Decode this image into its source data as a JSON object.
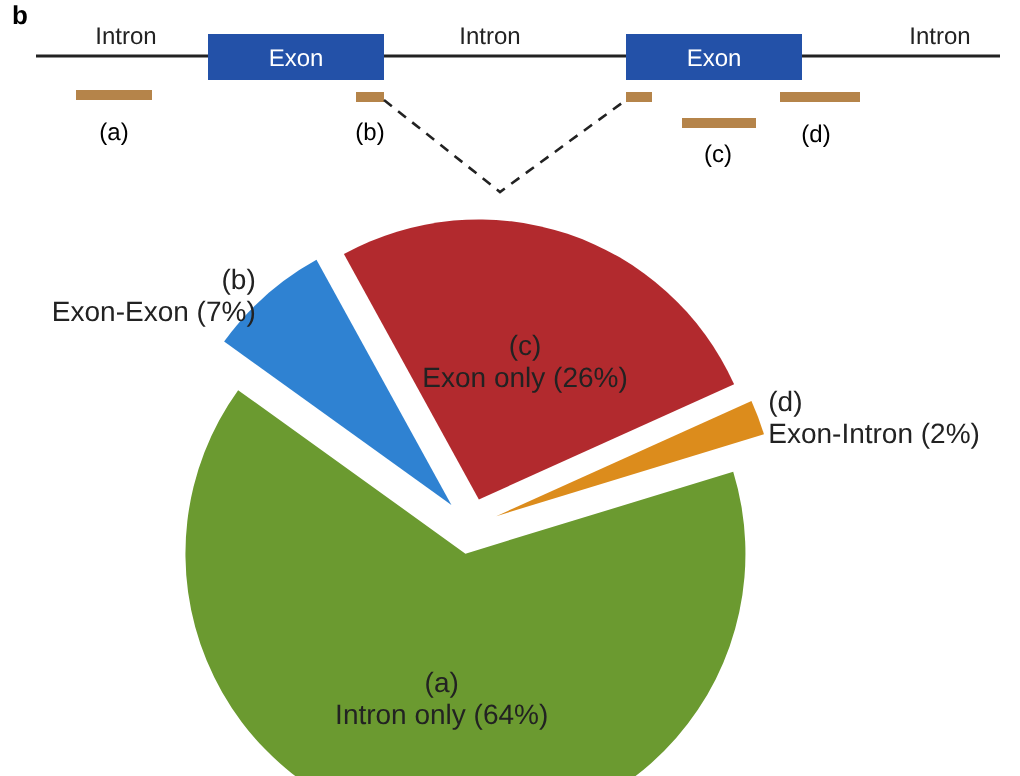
{
  "chart_data": {
    "type": "pie",
    "title": "b",
    "categories": [
      "(a)",
      "(b)",
      "(c)",
      "(d)"
    ],
    "values": [
      64,
      7,
      26,
      2
    ],
    "value_labels": [
      "Intron only (64%)",
      "Exon-Exon (7%)",
      "Exon only (26%)",
      "Exon-Intron (2%)"
    ],
    "colors": [
      "#6b9a30",
      "#2f82d2",
      "#b22a2e",
      "#dc8c1c"
    ],
    "annotations": [
      "Intron",
      "Exon",
      "Intron",
      "Exon",
      "Intron"
    ],
    "legend": false
  }
}
